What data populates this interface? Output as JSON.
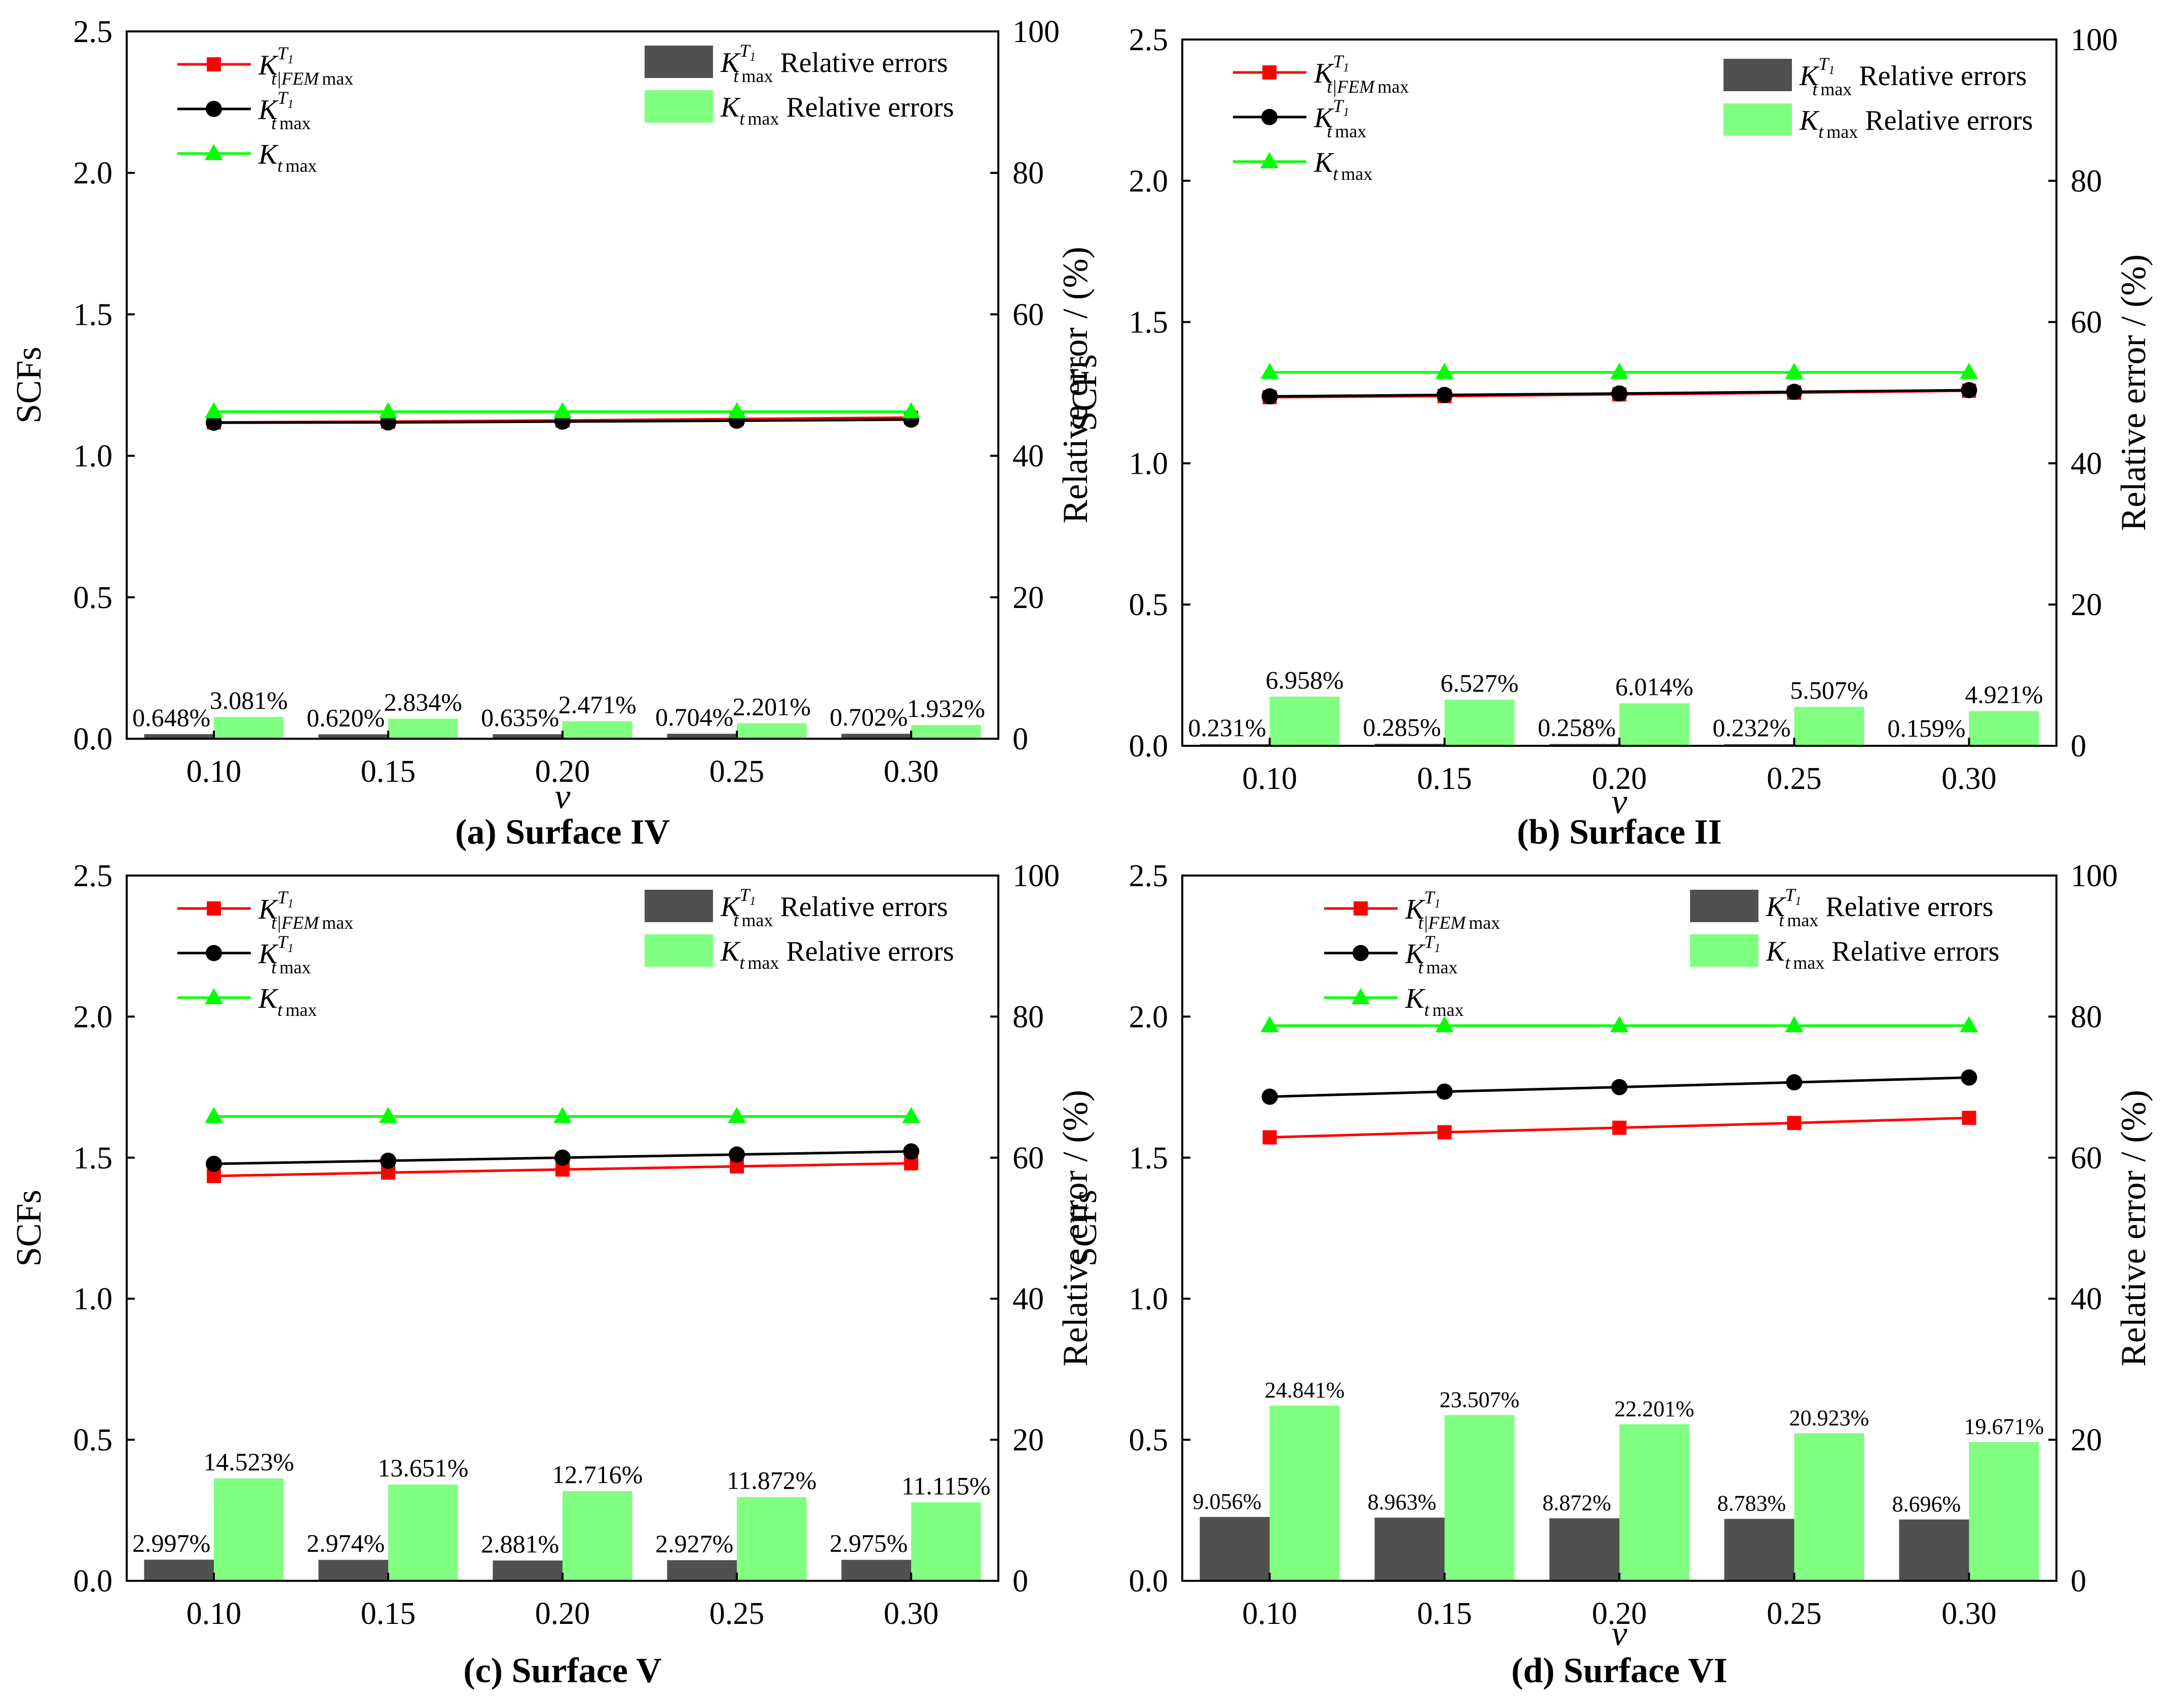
{
  "colors": {
    "fem": "#ff0000",
    "kt": "#000000",
    "ktmax": "#00ff00",
    "bar_dark": "#505050",
    "bar_green": "#80ff80"
  },
  "legend_text": {
    "K": "K",
    "t": "t",
    "T1_T": "T",
    "T1_sub": "1",
    "fem_sub": "t|FEM",
    "max": "max",
    "relative_errors": "Relative errors"
  },
  "chart_data": [
    {
      "type": "bar",
      "title": "(a) Surface IV",
      "xlabel": "v",
      "ylabel": "SCFs",
      "y2label": "Relative error / (%)",
      "categories": [
        "0.10",
        "0.15",
        "0.20",
        "0.25",
        "0.30"
      ],
      "ylim": [
        0,
        2.5
      ],
      "yticks": [
        "0.0",
        "0.5",
        "1.0",
        "1.5",
        "2.0",
        "2.5"
      ],
      "y2lim": [
        0,
        100
      ],
      "y2ticks": [
        "0",
        "20",
        "40",
        "60",
        "80",
        "100"
      ],
      "lines": [
        {
          "name": "Kt|FEM max T1",
          "key": "fem",
          "values": [
            1.118,
            1.121,
            1.125,
            1.13,
            1.135
          ]
        },
        {
          "name": "Kt max T1",
          "key": "kt",
          "values": [
            1.117,
            1.118,
            1.121,
            1.124,
            1.128
          ]
        },
        {
          "name": "Kt max",
          "key": "ktmax",
          "values": [
            1.156,
            1.156,
            1.156,
            1.156,
            1.156
          ]
        }
      ],
      "bars": [
        {
          "name": "Kt max T1 Relative errors",
          "key": "bar_dark",
          "values": [
            0.648,
            0.62,
            0.635,
            0.704,
            0.702
          ],
          "labels": [
            "0.648%",
            "0.620%",
            "0.635%",
            "0.704%",
            "0.702%"
          ]
        },
        {
          "name": "Kt max Relative errors",
          "key": "bar_green",
          "values": [
            3.081,
            2.834,
            2.471,
            2.201,
            1.932
          ],
          "labels": [
            "3.081%",
            "2.834%",
            "2.471%",
            "2.201%",
            "1.932%"
          ]
        }
      ]
    },
    {
      "type": "bar",
      "title": "(b) Surface II",
      "xlabel": "v",
      "ylabel": "SCFs",
      "y2label": "Relative error / (%)",
      "categories": [
        "0.10",
        "0.15",
        "0.20",
        "0.25",
        "0.30"
      ],
      "ylim": [
        0,
        2.5
      ],
      "yticks": [
        "0.0",
        "0.5",
        "1.0",
        "1.5",
        "2.0",
        "2.5"
      ],
      "y2lim": [
        0,
        100
      ],
      "y2ticks": [
        "0",
        "20",
        "40",
        "60",
        "80",
        "100"
      ],
      "lines": [
        {
          "name": "Kt|FEM max T1",
          "key": "fem",
          "values": [
            1.234,
            1.238,
            1.244,
            1.25,
            1.257
          ]
        },
        {
          "name": "Kt max T1",
          "key": "kt",
          "values": [
            1.237,
            1.242,
            1.247,
            1.253,
            1.259
          ]
        },
        {
          "name": "Kt max",
          "key": "ktmax",
          "values": [
            1.322,
            1.322,
            1.322,
            1.322,
            1.322
          ]
        }
      ],
      "bars": [
        {
          "name": "Kt max T1 Relative errors",
          "key": "bar_dark",
          "values": [
            0.231,
            0.285,
            0.258,
            0.232,
            0.159
          ],
          "labels": [
            "0.231%",
            "0.285%",
            "0.258%",
            "0.232%",
            "0.159%"
          ]
        },
        {
          "name": "Kt max Relative errors",
          "key": "bar_green",
          "values": [
            6.958,
            6.527,
            6.014,
            5.507,
            4.921
          ],
          "labels": [
            "6.958%",
            "6.527%",
            "6.014%",
            "5.507%",
            "4.921%"
          ]
        }
      ]
    },
    {
      "type": "bar",
      "title": "(c) Surface V",
      "xlabel": "",
      "ylabel": "SCFs",
      "y2label": "Relative error / (%)",
      "categories": [
        "0.10",
        "0.15",
        "0.20",
        "0.25",
        "0.30"
      ],
      "ylim": [
        0,
        2.5
      ],
      "yticks": [
        "0.0",
        "0.5",
        "1.0",
        "1.5",
        "2.0",
        "2.5"
      ],
      "y2lim": [
        0,
        100
      ],
      "y2ticks": [
        "0",
        "20",
        "40",
        "60",
        "80",
        "100"
      ],
      "lines": [
        {
          "name": "Kt|FEM max T1",
          "key": "fem",
          "values": [
            1.435,
            1.447,
            1.458,
            1.469,
            1.48
          ]
        },
        {
          "name": "Kt max T1",
          "key": "kt",
          "values": [
            1.478,
            1.489,
            1.5,
            1.511,
            1.522
          ]
        },
        {
          "name": "Kt max",
          "key": "ktmax",
          "values": [
            1.646,
            1.646,
            1.646,
            1.646,
            1.646
          ]
        }
      ],
      "bars": [
        {
          "name": "Kt max T1 Relative errors",
          "key": "bar_dark",
          "values": [
            2.997,
            2.974,
            2.881,
            2.927,
            2.975
          ],
          "labels": [
            "2.997%",
            "2.974%",
            "2.881%",
            "2.927%",
            "2.975%"
          ]
        },
        {
          "name": "Kt max Relative errors",
          "key": "bar_green",
          "values": [
            14.523,
            13.651,
            12.716,
            11.872,
            11.115
          ],
          "labels": [
            "14.523%",
            "13.651%",
            "12.716%",
            "11.872%",
            "11.115%"
          ]
        }
      ]
    },
    {
      "type": "bar",
      "title": "(d) Surface VI",
      "xlabel": "v",
      "ylabel": "SCFs",
      "y2label": "Relative error / (%)",
      "categories": [
        "0.10",
        "0.15",
        "0.20",
        "0.25",
        "0.30"
      ],
      "ylim": [
        0,
        2.5
      ],
      "yticks": [
        "0.0",
        "0.5",
        "1.0",
        "1.5",
        "2.0",
        "2.5"
      ],
      "y2lim": [
        0,
        100
      ],
      "y2ticks": [
        "0",
        "20",
        "40",
        "60",
        "80",
        "100"
      ],
      "lines": [
        {
          "name": "Kt|FEM max T1",
          "key": "fem",
          "values": [
            1.572,
            1.59,
            1.606,
            1.623,
            1.641
          ]
        },
        {
          "name": "Kt max T1",
          "key": "kt",
          "values": [
            1.716,
            1.734,
            1.75,
            1.767,
            1.784
          ]
        },
        {
          "name": "Kt max",
          "key": "ktmax",
          "values": [
            1.968,
            1.968,
            1.968,
            1.968,
            1.968
          ]
        }
      ],
      "bars": [
        {
          "name": "Kt max T1 Relative errors",
          "key": "bar_dark",
          "values": [
            9.056,
            8.963,
            8.872,
            8.783,
            8.696
          ],
          "labels": [
            "9.056%",
            "8.963%",
            "8.872%",
            "8.783%",
            "8.696%"
          ]
        },
        {
          "name": "Kt max Relative errors",
          "key": "bar_green",
          "values": [
            24.841,
            23.507,
            22.201,
            20.923,
            19.671
          ],
          "labels": [
            "24.841%",
            "23.507%",
            "22.201%",
            "20.923%",
            "19.671%"
          ]
        }
      ]
    }
  ]
}
